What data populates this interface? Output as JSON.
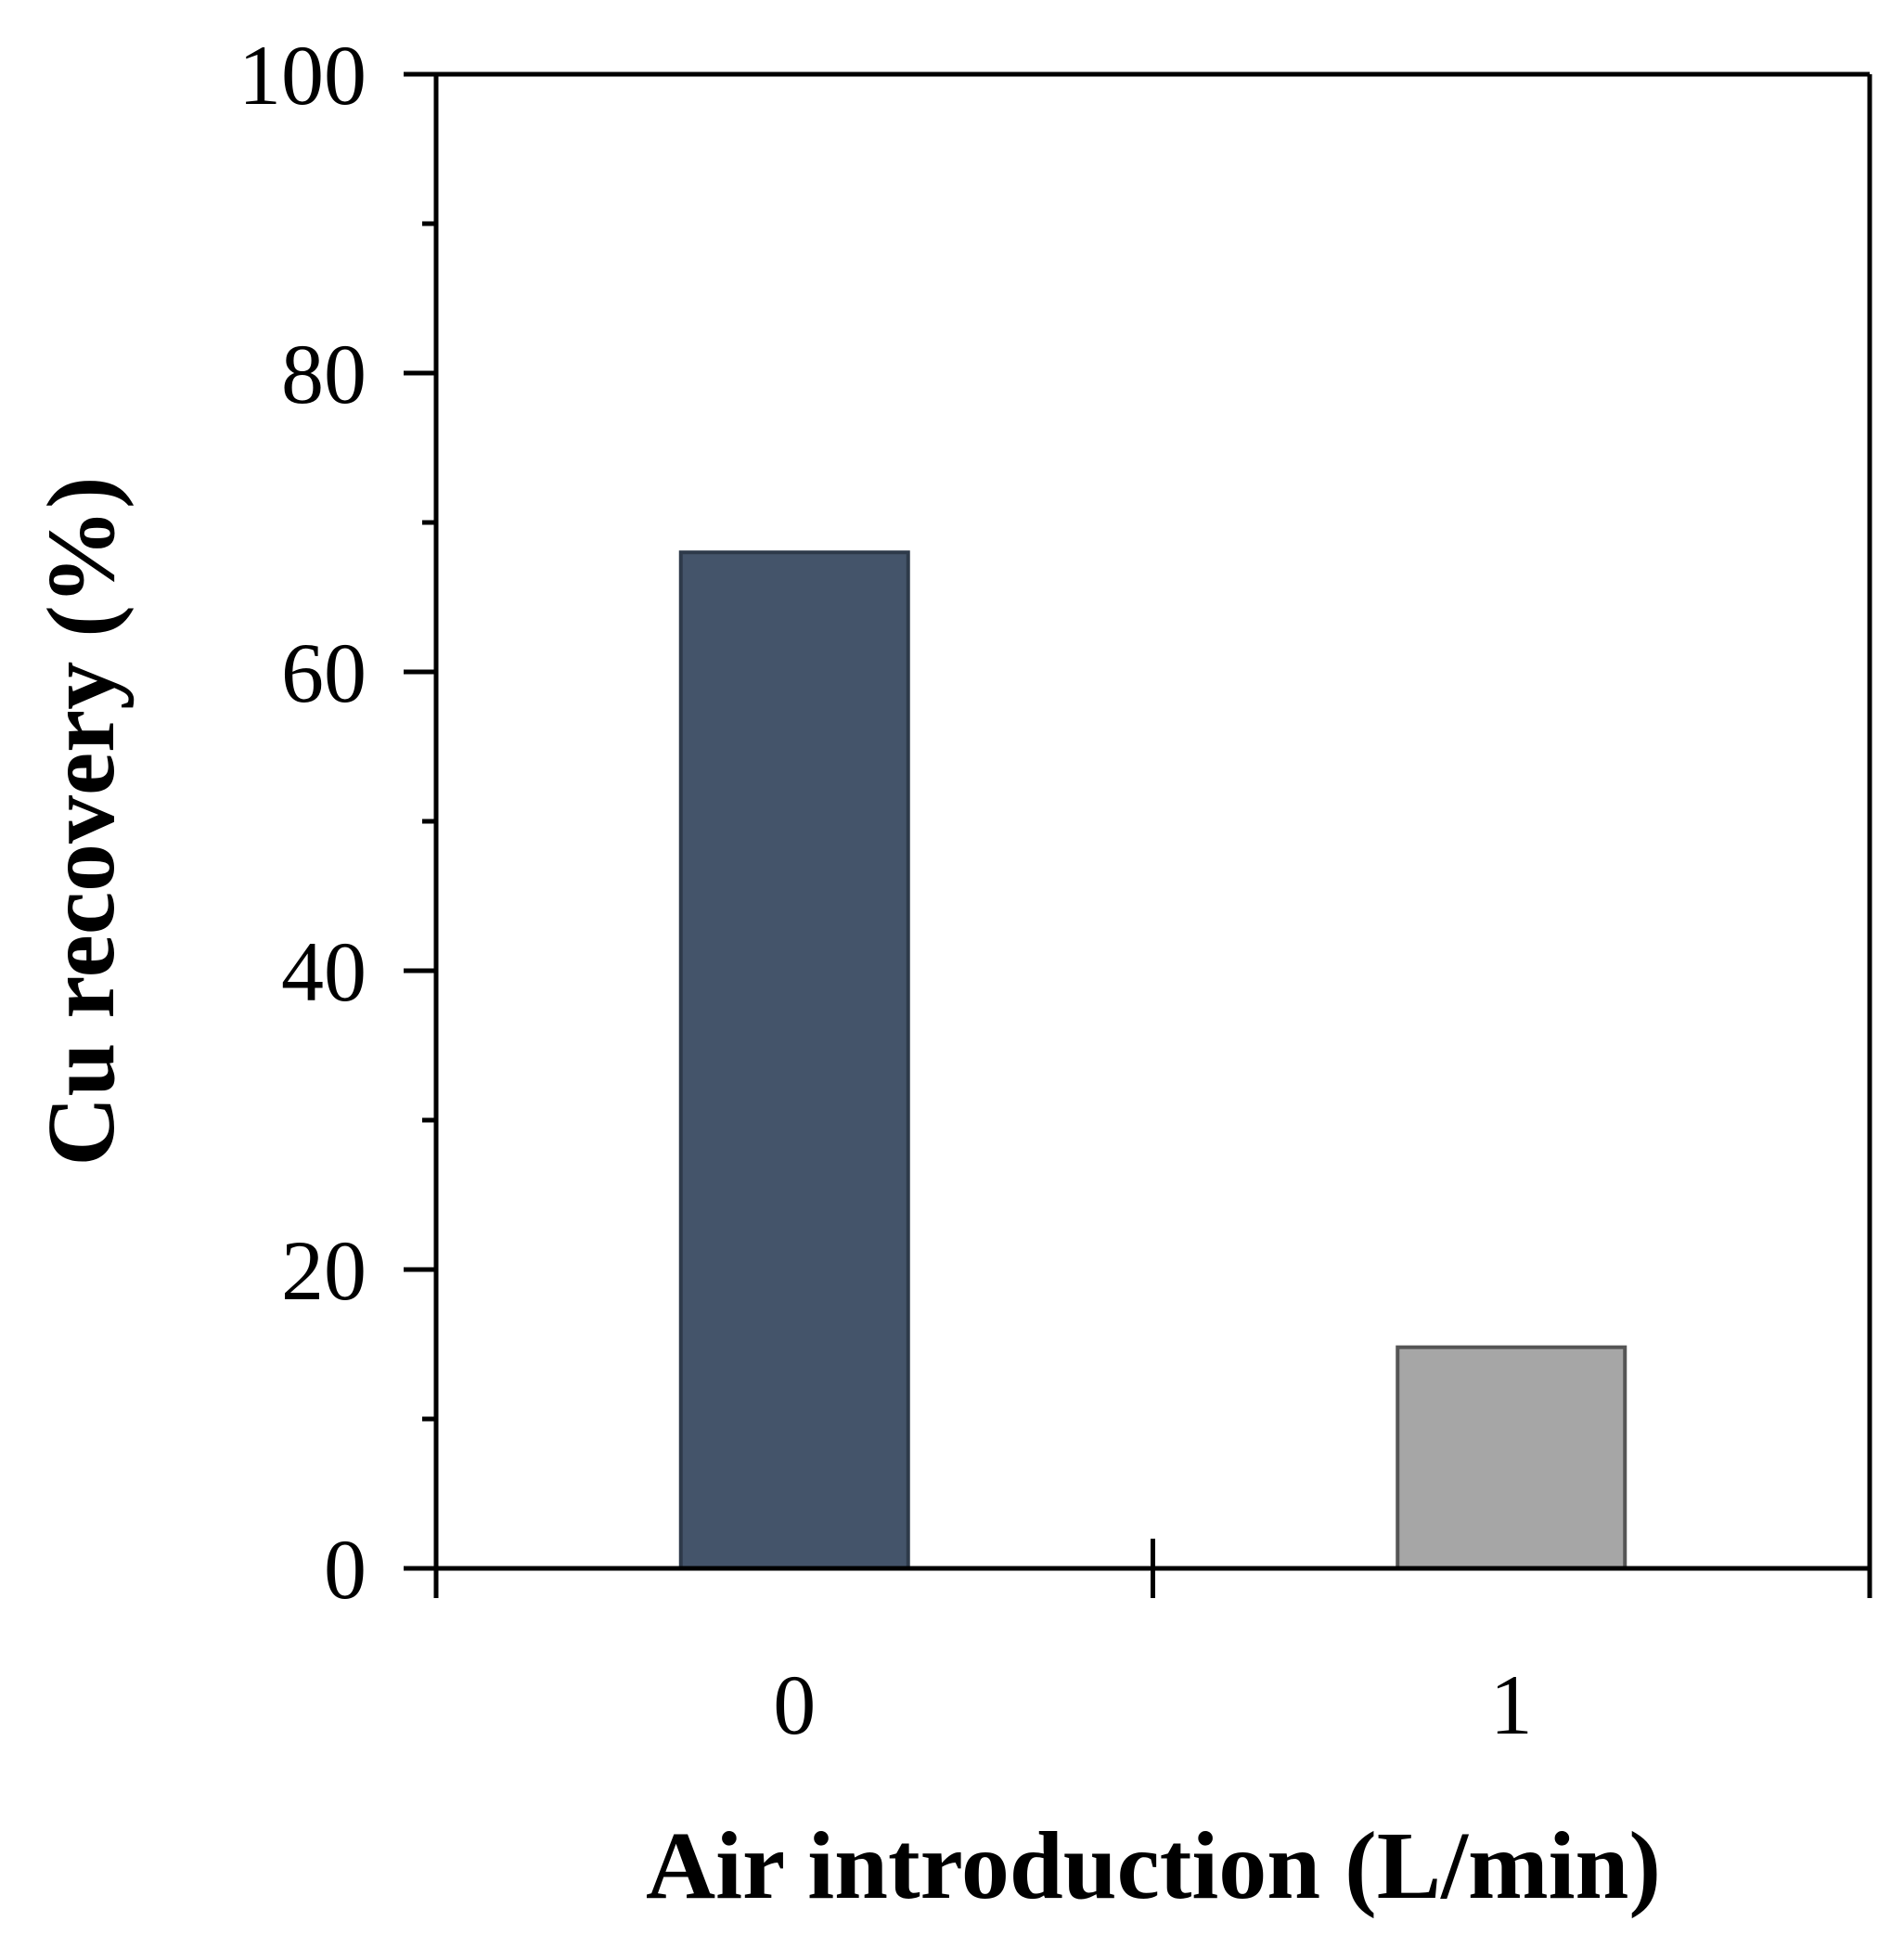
{
  "chart_data": {
    "type": "bar",
    "categories": [
      "0",
      "1"
    ],
    "values": [
      68,
      14.8
    ],
    "bar_colors": [
      "#44546a",
      "#a6a6a6"
    ],
    "bar_edge_colors": [
      "#2e3a4a",
      "#555555"
    ],
    "xlabel": "Air introduction (L/min)",
    "ylabel": "Cu recovery (%)",
    "ylim": [
      0,
      100
    ],
    "yticks": [
      0,
      20,
      40,
      60,
      80,
      100
    ],
    "yticks_minor": [
      10,
      30,
      50,
      70,
      90
    ],
    "grid": false,
    "legend": "none"
  }
}
